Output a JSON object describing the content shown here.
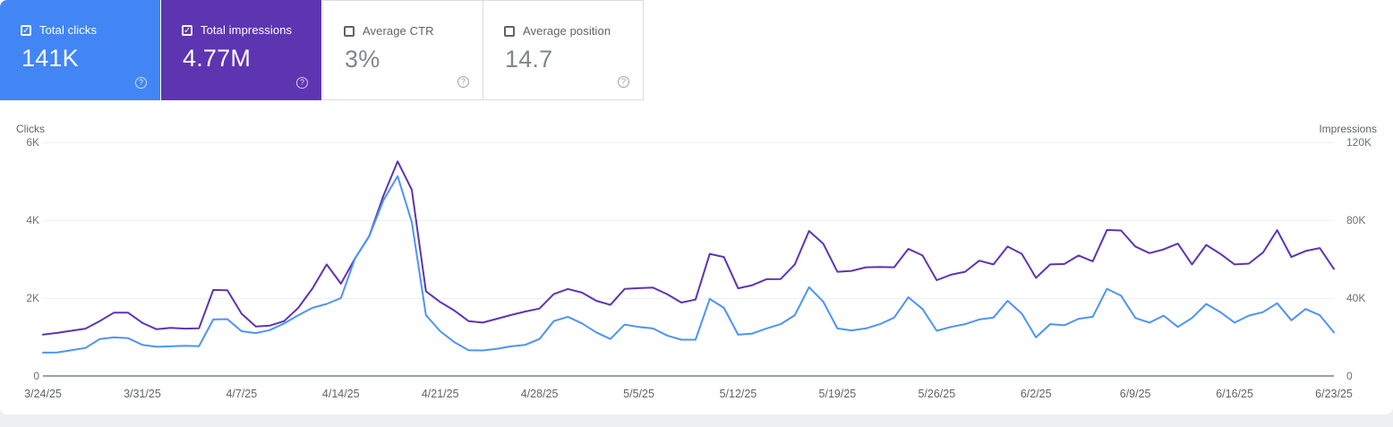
{
  "scorecards": [
    {
      "label": "Total clicks",
      "value": "141K",
      "checked": true,
      "selected": true,
      "bg": "#4285f4"
    },
    {
      "label": "Total impressions",
      "value": "4.77M",
      "checked": true,
      "selected": true,
      "bg": "#5e35b1"
    },
    {
      "label": "Average CTR",
      "value": "3%",
      "checked": false,
      "selected": false,
      "bg": "#ffffff"
    },
    {
      "label": "Average position",
      "value": "14.7",
      "checked": false,
      "selected": false,
      "bg": "#ffffff"
    }
  ],
  "chart_data": {
    "type": "line",
    "x_tick_labels": [
      "3/24/25",
      "3/31/25",
      "4/7/25",
      "4/14/25",
      "4/21/25",
      "4/28/25",
      "5/5/25",
      "5/12/25",
      "5/19/25",
      "5/26/25",
      "6/2/25",
      "6/9/25",
      "6/16/25",
      "6/23/25"
    ],
    "left_axis": {
      "title": "Clicks",
      "ticks": [
        "0",
        "2K",
        "4K",
        "6K"
      ],
      "max": 6000
    },
    "right_axis": {
      "title": "Impressions",
      "ticks": [
        "0",
        "40K",
        "80K",
        "120K"
      ],
      "max": 120000
    },
    "grid": true,
    "legend_position": "none",
    "series": [
      {
        "name": "Total clicks",
        "slug": "clicks-line",
        "axis": "left",
        "color": "#4d94f5",
        "values": [
          600,
          605,
          660,
          720,
          950,
          990,
          970,
          800,
          750,
          760,
          775,
          765,
          1450,
          1460,
          1150,
          1100,
          1180,
          1350,
          1560,
          1750,
          1850,
          2000,
          3020,
          3590,
          4510,
          5130,
          3950,
          1560,
          1150,
          870,
          660,
          655,
          700,
          760,
          800,
          950,
          1410,
          1520,
          1350,
          1120,
          950,
          1320,
          1260,
          1220,
          1040,
          930,
          930,
          1980,
          1750,
          1060,
          1090,
          1220,
          1330,
          1560,
          2280,
          1910,
          1220,
          1170,
          1220,
          1330,
          1500,
          2020,
          1720,
          1160,
          1260,
          1330,
          1450,
          1500,
          1930,
          1600,
          990,
          1330,
          1300,
          1470,
          1520,
          2240,
          2060,
          1490,
          1370,
          1550,
          1260,
          1490,
          1850,
          1640,
          1370,
          1550,
          1640,
          1870,
          1430,
          1720,
          1560,
          1120
        ]
      },
      {
        "name": "Total impressions",
        "slug": "impressions-line",
        "axis": "right",
        "color": "#5e35b1",
        "values": [
          21300,
          22100,
          23200,
          24300,
          28200,
          32500,
          32500,
          27300,
          24000,
          24700,
          24300,
          24500,
          44200,
          44000,
          32000,
          25400,
          25900,
          28200,
          35000,
          45000,
          57300,
          47400,
          60400,
          71900,
          92600,
          110200,
          95600,
          43500,
          38000,
          33600,
          28200,
          27400,
          29400,
          31300,
          33100,
          34600,
          42000,
          44700,
          42800,
          38600,
          36500,
          44700,
          45100,
          45400,
          42000,
          37700,
          39200,
          62700,
          61100,
          45000,
          46600,
          49700,
          49800,
          57300,
          74500,
          68000,
          53500,
          54000,
          55800,
          56000,
          55800,
          65300,
          61900,
          49200,
          52000,
          53500,
          59200,
          57300,
          66500,
          62700,
          50400,
          57300,
          57500,
          61900,
          58900,
          75000,
          74700,
          66500,
          63100,
          65000,
          68000,
          57300,
          67300,
          62700,
          57300,
          57700,
          63400,
          74900,
          61100,
          64200,
          65700,
          55000
        ]
      }
    ]
  },
  "icons": {
    "help": "?",
    "check": "✓"
  }
}
